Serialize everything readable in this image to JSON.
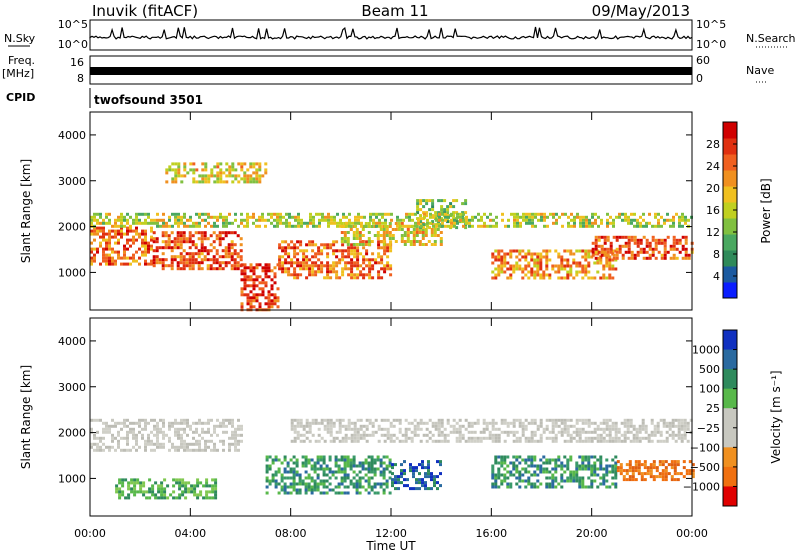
{
  "header": {
    "station": "Inuvik (fitACF)",
    "beam": "Beam 11",
    "date": "09/May/2013"
  },
  "side_labels": {
    "nsky": "N.Sky",
    "nsearch": "N.Search",
    "freq_top": "Freq.",
    "freq_unit": "[MHz]",
    "nave": "Nave",
    "cpid": "CPID",
    "cpid_value": "twofsound 3501"
  },
  "ticks": {
    "nsky_left": [
      "10^5",
      "10^0"
    ],
    "nsky_right": [
      "10^5",
      "10^0"
    ],
    "freq_left": [
      "16",
      "8"
    ],
    "nave_right": [
      "60",
      "0"
    ]
  },
  "chart_data": [
    {
      "type": "heatmap",
      "name": "power",
      "ylabel": "Slant Range [km]",
      "ylim": [
        180,
        4500
      ],
      "yticks": [
        1000,
        2000,
        3000,
        4000
      ],
      "xlim": [
        0,
        24
      ],
      "colorbar": {
        "label": "Power [dB]",
        "range": [
          0,
          32
        ],
        "ticks": [
          4,
          8,
          12,
          16,
          20,
          24,
          28
        ],
        "colors": [
          "#0a1eff",
          "#1b5aa0",
          "#2f8a5a",
          "#4aa860",
          "#80c040",
          "#c0d020",
          "#f0c020",
          "#f09020",
          "#f06020",
          "#e03010",
          "#d00000"
        ]
      },
      "bands": [
        {
          "x": [
            0,
            2.5
          ],
          "y": [
            1200,
            2000
          ],
          "v": 24
        },
        {
          "x": [
            2.5,
            6
          ],
          "y": [
            1100,
            1900
          ],
          "v": 26
        },
        {
          "x": [
            6,
            7.5
          ],
          "y": [
            180,
            1200
          ],
          "v": 28
        },
        {
          "x": [
            7.5,
            12
          ],
          "y": [
            900,
            1700
          ],
          "v": 24
        },
        {
          "x": [
            10,
            14
          ],
          "y": [
            1600,
            2100
          ],
          "v": 18
        },
        {
          "x": [
            13,
            15
          ],
          "y": [
            2000,
            2600
          ],
          "v": 14
        },
        {
          "x": [
            16,
            21
          ],
          "y": [
            900,
            1500
          ],
          "v": 22
        },
        {
          "x": [
            20,
            24
          ],
          "y": [
            1300,
            1800
          ],
          "v": 26
        },
        {
          "x": [
            0,
            24
          ],
          "y": [
            2000,
            2300
          ],
          "v": 16
        },
        {
          "x": [
            3,
            7
          ],
          "y": [
            3000,
            3400
          ],
          "v": 18
        }
      ]
    },
    {
      "type": "heatmap",
      "name": "velocity",
      "ylabel": "Slant Range [km]",
      "xlabel": "Time UT",
      "ylim": [
        180,
        4500
      ],
      "yticks": [
        1000,
        2000,
        3000,
        4000
      ],
      "xlim": [
        0,
        24
      ],
      "xticks": [
        0,
        4,
        8,
        12,
        16,
        20,
        24
      ],
      "xticklabels": [
        "00:00",
        "04:00",
        "08:00",
        "12:00",
        "16:00",
        "20:00",
        "00:00"
      ],
      "colorbar": {
        "label": "Velocity [m s⁻¹]",
        "ticks": [
          "1000",
          "500",
          "100",
          "25",
          "−25",
          "−100",
          "−500",
          "−1000"
        ],
        "colors": [
          "#1030c0",
          "#2a6aa0",
          "#2e8a5c",
          "#58b84a",
          "#c8c8c0",
          "#c8c8c0",
          "#f09020",
          "#f07010",
          "#e00000"
        ]
      },
      "bands": [
        {
          "x": [
            0,
            6
          ],
          "y": [
            1600,
            2300
          ],
          "v": "ground"
        },
        {
          "x": [
            8,
            24
          ],
          "y": [
            1800,
            2300
          ],
          "v": "ground"
        },
        {
          "x": [
            7,
            12
          ],
          "y": [
            700,
            1500
          ],
          "v": "positive"
        },
        {
          "x": [
            12,
            14
          ],
          "y": [
            800,
            1400
          ],
          "v": "strong-positive"
        },
        {
          "x": [
            16,
            21
          ],
          "y": [
            800,
            1500
          ],
          "v": "positive"
        },
        {
          "x": [
            21,
            24
          ],
          "y": [
            1000,
            1400
          ],
          "v": "negative"
        },
        {
          "x": [
            1,
            5
          ],
          "y": [
            600,
            1000
          ],
          "v": "weak-positive"
        }
      ]
    }
  ]
}
